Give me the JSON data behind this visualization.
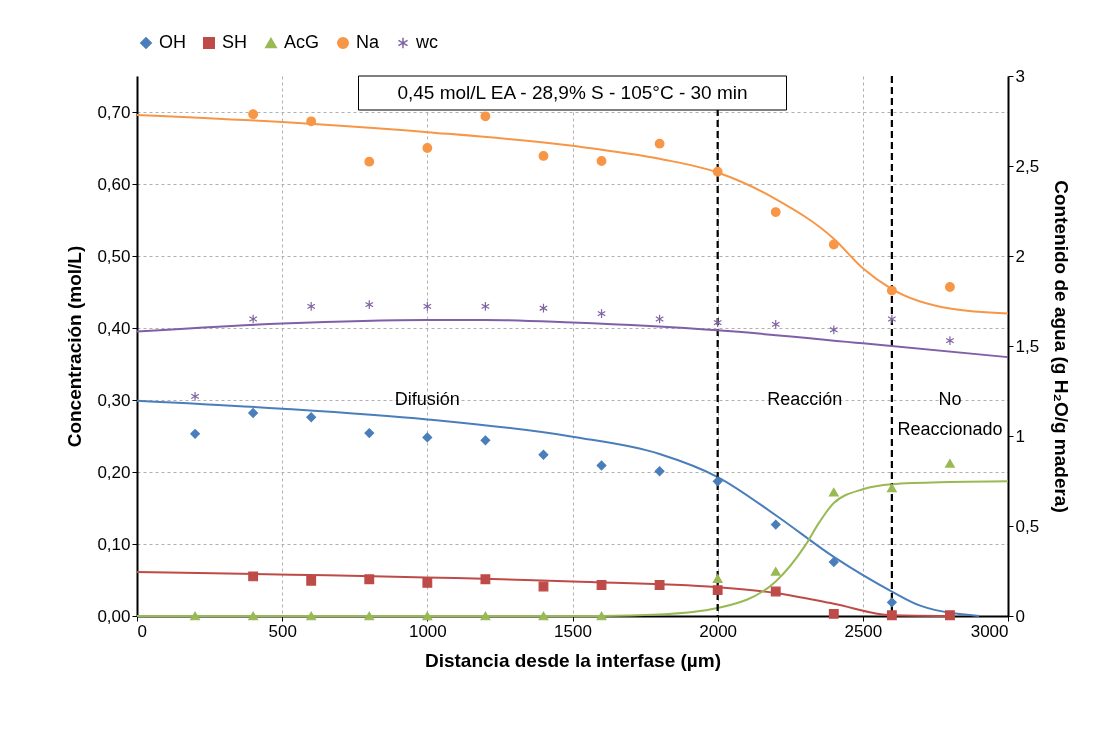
{
  "chart_data": {
    "type": "scatter",
    "title": "0,45 mol/L EA - 28,9% S - 105°C - 30 min",
    "xlabel": "Distancia desde la interfase (µm)",
    "ylabel": "Concentración  (mol/L)",
    "y2label": "Contenido de agua  (g H₂O/g madera)",
    "xlim": [
      0,
      3000
    ],
    "xticks": [
      0,
      500,
      1000,
      1500,
      2000,
      2500,
      3000
    ],
    "ylim": [
      0,
      0.75
    ],
    "yticks": [
      {
        "value": 0,
        "label": "0,00"
      },
      {
        "value": 0.1,
        "label": "0,10"
      },
      {
        "value": 0.2,
        "label": "0,20"
      },
      {
        "value": 0.3,
        "label": "0,30"
      },
      {
        "value": 0.4,
        "label": "0,40"
      },
      {
        "value": 0.5,
        "label": "0,50"
      },
      {
        "value": 0.6,
        "label": "0,60"
      },
      {
        "value": 0.7,
        "label": "0,70"
      }
    ],
    "y2lim": [
      0,
      3
    ],
    "y2ticks": [
      0,
      {
        "value": 0.5,
        "label": "0,5"
      },
      1,
      {
        "value": 1.5,
        "label": "1,5"
      },
      2,
      {
        "value": 2.5,
        "label": "2,5"
      },
      3
    ],
    "grid": true,
    "legend": "top",
    "series": [
      {
        "name": "OH",
        "color": "#4a7ebb",
        "marker": "diamond",
        "x": [
          200,
          400,
          600,
          800,
          1000,
          1200,
          1400,
          1600,
          1800,
          2000,
          2200,
          2400,
          2600
        ],
        "values": [
          0.253,
          0.282,
          0.276,
          0.254,
          0.248,
          0.244,
          0.224,
          0.209,
          0.201,
          0.187,
          0.127,
          0.075,
          0.019
        ]
      },
      {
        "name": "SH",
        "color": "#be4b48",
        "marker": "square",
        "x": [
          400,
          600,
          800,
          1000,
          1200,
          1400,
          1600,
          1800,
          2000,
          2200,
          2400,
          2600,
          2800
        ],
        "values": [
          0.055,
          0.049,
          0.051,
          0.046,
          0.051,
          0.041,
          0.043,
          0.043,
          0.036,
          0.034,
          0.003,
          0.001,
          0.001
        ]
      },
      {
        "name": "AcG",
        "color": "#98b954",
        "marker": "triangle",
        "x": [
          200,
          400,
          600,
          800,
          1000,
          1200,
          1400,
          1600,
          2000,
          2200,
          2400,
          2600,
          2800
        ],
        "values": [
          0,
          0,
          0,
          0,
          0,
          0,
          0,
          0,
          0.052,
          0.062,
          0.172,
          0.178,
          0.212
        ]
      },
      {
        "name": "Na",
        "color": "#f79646",
        "marker": "circle",
        "x": [
          400,
          600,
          800,
          1000,
          1200,
          1400,
          1600,
          1800,
          2000,
          2200,
          2400,
          2600,
          2800
        ],
        "values": [
          0.697,
          0.687,
          0.631,
          0.65,
          0.694,
          0.639,
          0.632,
          0.656,
          0.617,
          0.561,
          0.516,
          0.452,
          0.457
        ]
      },
      {
        "name": "wc",
        "color": "#8064a2",
        "marker": "cross",
        "axis": "y2",
        "x": [
          200,
          400,
          600,
          800,
          1000,
          1200,
          1400,
          1600,
          1800,
          2000,
          2200,
          2400,
          2600,
          2800
        ],
        "values": [
          1.22,
          1.65,
          1.72,
          1.73,
          1.72,
          1.72,
          1.71,
          1.68,
          1.65,
          1.63,
          1.62,
          1.59,
          1.65,
          1.53
        ]
      },
      {
        "type": "line",
        "color": "#4a7ebb",
        "x": [
          0,
          500,
          1000,
          1500,
          1800,
          2000,
          2200,
          2400,
          2600,
          2700,
          2900
        ],
        "values": [
          0.299,
          0.288,
          0.273,
          0.249,
          0.225,
          0.193,
          0.14,
          0.082,
          0.034,
          0.014,
          0
        ]
      },
      {
        "type": "line",
        "color": "#be4b48",
        "x": [
          0,
          1500,
          2000,
          2200,
          2400,
          2600,
          2800
        ],
        "values": [
          0.061,
          0.048,
          0.04,
          0.032,
          0.017,
          0.001,
          0
        ]
      },
      {
        "type": "line",
        "color": "#98b954",
        "x": [
          0,
          1600,
          1800,
          2000,
          2200,
          2300,
          2350,
          2400,
          2500,
          2600,
          2800,
          3000
        ],
        "values": [
          0,
          0,
          0.002,
          0.011,
          0.048,
          0.097,
          0.13,
          0.157,
          0.176,
          0.183,
          0.186,
          0.187
        ]
      },
      {
        "type": "line",
        "color": "#f79646",
        "x": [
          0,
          500,
          1000,
          1500,
          1800,
          2000,
          2200,
          2400,
          2500,
          2600,
          2800,
          3000
        ],
        "values": [
          0.696,
          0.686,
          0.672,
          0.653,
          0.635,
          0.616,
          0.579,
          0.524,
          0.483,
          0.454,
          0.427,
          0.42
        ]
      },
      {
        "type": "line",
        "color": "#7f5fa8",
        "axis": "y2",
        "x": [
          0,
          500,
          1000,
          1200,
          1500,
          2000,
          2500,
          3000
        ],
        "values": [
          1.58,
          1.625,
          1.645,
          1.645,
          1.63,
          1.587,
          1.515,
          1.438
        ]
      }
    ],
    "ref_lines": [
      {
        "axis": "x",
        "value": 2000,
        "color": "#000000",
        "line_style": "dashed"
      },
      {
        "axis": "x",
        "value": 2600,
        "color": "#000000",
        "line_style": "dashed"
      }
    ],
    "annotations": [
      "Difusión",
      "Reacción",
      "No Reaccionado"
    ]
  }
}
